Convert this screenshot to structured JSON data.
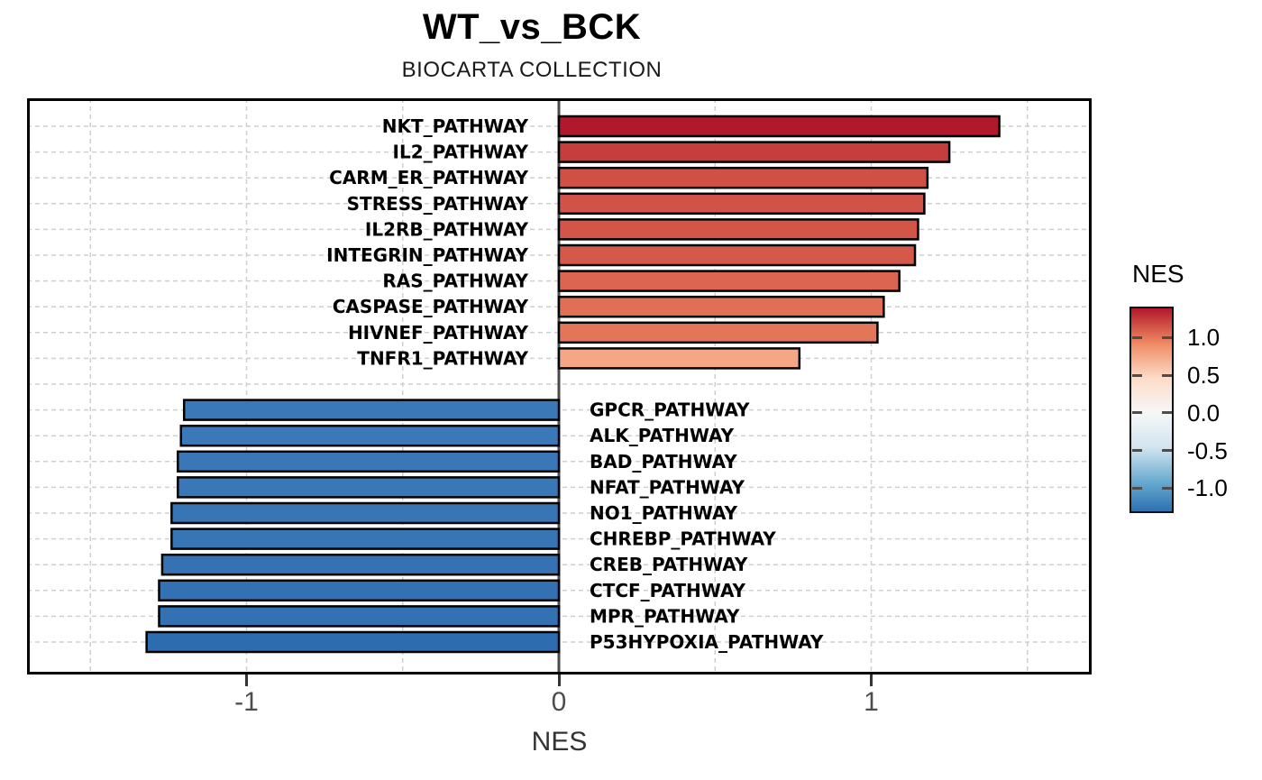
{
  "title": "WT_vs_BCK",
  "subtitle": "BIOCARTA COLLECTION",
  "chart_data": {
    "type": "bar",
    "orientation": "horizontal",
    "title": "WT_vs_BCK",
    "subtitle": "BIOCARTA COLLECTION",
    "xlabel": "NES",
    "xlim": [
      -1.703,
      1.706
    ],
    "x_ticks": [
      -1,
      0,
      1
    ],
    "x_tick_labels": [
      "-1",
      "0",
      "1"
    ],
    "grid": "dashed",
    "grid_minor_x": [
      -1.5,
      -0.5,
      0.5,
      1.5
    ],
    "bars": [
      {
        "pathway": "NKT_PATHWAY",
        "nes": 1.41,
        "color": "#b2182b"
      },
      {
        "pathway": "IL2_PATHWAY",
        "nes": 1.25,
        "color": "#c53d3d"
      },
      {
        "pathway": "CARM_ER_PATHWAY",
        "nes": 1.18,
        "color": "#d05046"
      },
      {
        "pathway": "STRESS_PATHWAY",
        "nes": 1.17,
        "color": "#d15247"
      },
      {
        "pathway": "IL2RB_PATHWAY",
        "nes": 1.15,
        "color": "#d25548"
      },
      {
        "pathway": "INTEGRIN_PATHWAY",
        "nes": 1.14,
        "color": "#d5594b"
      },
      {
        "pathway": "RAS_PATHWAY",
        "nes": 1.09,
        "color": "#db6550"
      },
      {
        "pathway": "CASPASE_PATHWAY",
        "nes": 1.04,
        "color": "#e06f55"
      },
      {
        "pathway": "HIVNEF_PATHWAY",
        "nes": 1.02,
        "color": "#e37659"
      },
      {
        "pathway": "TNFR1_PATHWAY",
        "nes": 0.77,
        "color": "#f4a787"
      },
      {
        "pathway": "GPCR_PATHWAY",
        "nes": -1.2,
        "color": "#3a78b7"
      },
      {
        "pathway": "ALK_PATHWAY",
        "nes": -1.21,
        "color": "#3a78b7"
      },
      {
        "pathway": "BAD_PATHWAY",
        "nes": -1.22,
        "color": "#3977b6"
      },
      {
        "pathway": "NFAT_PATHWAY",
        "nes": -1.22,
        "color": "#3977b6"
      },
      {
        "pathway": "NO1_PATHWAY",
        "nes": -1.24,
        "color": "#3775b5"
      },
      {
        "pathway": "CHREBP_PATHWAY",
        "nes": -1.24,
        "color": "#3775b5"
      },
      {
        "pathway": "CREB_PATHWAY",
        "nes": -1.27,
        "color": "#3472b3"
      },
      {
        "pathway": "CTCF_PATHWAY",
        "nes": -1.28,
        "color": "#3371b2"
      },
      {
        "pathway": "MPR_PATHWAY",
        "nes": -1.28,
        "color": "#3371b2"
      },
      {
        "pathway": "P53HYPOXIA_PATHWAY",
        "nes": -1.32,
        "color": "#2e6cb0"
      }
    ],
    "legend": {
      "title": "NES",
      "position": "right",
      "top_value": 1.41,
      "bottom_value": -1.33,
      "gradient": [
        {
          "color": "#b2182b",
          "pos": 0
        },
        {
          "color": "#ef8a62",
          "pos": 17.2
        },
        {
          "color": "#fddbc7",
          "pos": 34.3
        },
        {
          "color": "#f7f7f7",
          "pos": 51.4
        },
        {
          "color": "#d1e5f0",
          "pos": 68.6
        },
        {
          "color": "#67a9cf",
          "pos": 85.7
        },
        {
          "color": "#2d71b2",
          "pos": 100
        }
      ],
      "ticks": [
        {
          "label": "1.0",
          "value": 1.0
        },
        {
          "label": "0.5",
          "value": 0.5
        },
        {
          "label": "0.0",
          "value": 0.0
        },
        {
          "label": "-0.5",
          "value": -0.5
        },
        {
          "label": "-1.0",
          "value": -1.0
        }
      ]
    }
  }
}
